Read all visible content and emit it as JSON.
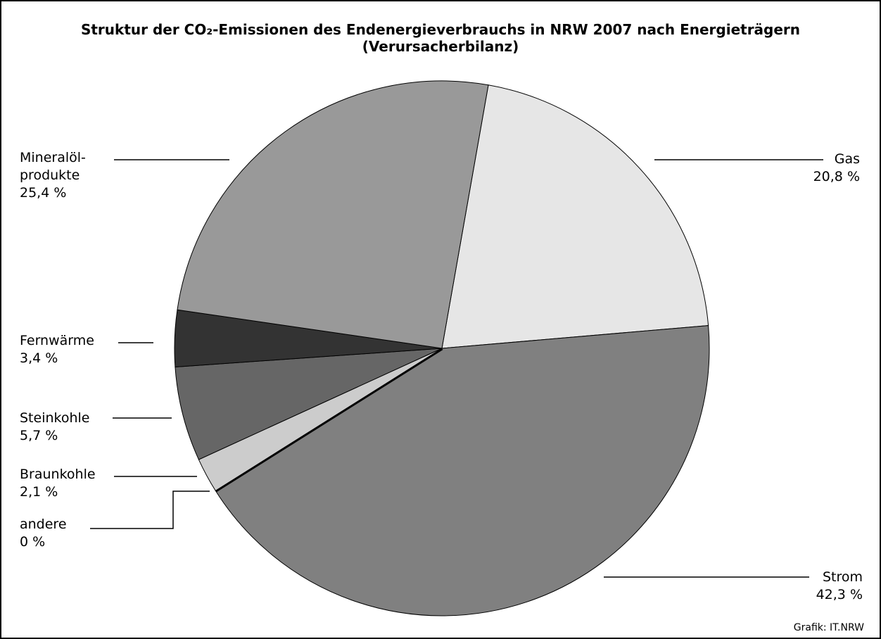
{
  "chart_data": {
    "type": "pie",
    "title": "Struktur der CO₂-Emissionen des Endenergieverbrauchs in NRW 2007 nach Energieträgern",
    "subtitle": "(Verursacherbilanz)",
    "categories": [
      "Gas",
      "Strom",
      "andere",
      "Braunkohle",
      "Steinkohle",
      "Fernwärme",
      "Mineralöl-\nprodukte"
    ],
    "values": [
      20.8,
      42.3,
      0,
      2.1,
      5.7,
      3.4,
      25.4
    ],
    "value_labels": [
      "20,8 %",
      "42,3 %",
      "0 %",
      "2,1 %",
      "5,7 %",
      "3,4 %",
      "25,4 %"
    ],
    "colors": [
      "#e6e6e6",
      "#808080",
      "#000000",
      "#cccccc",
      "#666666",
      "#333333",
      "#999999"
    ],
    "source": "Grafik: IT.NRW"
  }
}
